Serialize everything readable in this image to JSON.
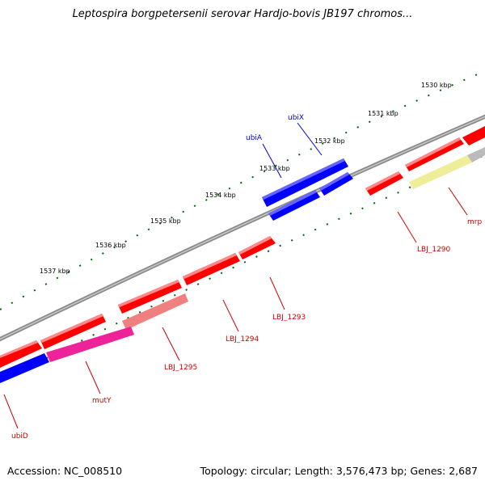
{
  "title": "Leptospira borgpetersenii serovar Hardjo-bovis JB197 chromos...",
  "footer": {
    "accession": "Accession: NC_008510",
    "summary": "Topology: circular; Length: 3,576,473 bp; Genes: 2,687"
  },
  "colors": {
    "gene_red": "#ff0000",
    "gene_blue": "#0000ff",
    "gene_pink": "#ee2299",
    "gene_salmon": "#f08080",
    "gene_yellow": "#eeee99",
    "gene_grey": "#bbbbbb",
    "tick_green": "#006600",
    "backbone": "#888888",
    "label_red": "#cc0000",
    "label_blue": "#0000cc"
  },
  "kbp_labels": [
    "1530 kbp",
    "1531 kbp",
    "1532 kbp",
    "1533 kbp",
    "1534 kbp",
    "1535 kbp",
    "1536 kbp",
    "1537 kbp"
  ],
  "gene_labels": [
    "ubiX",
    "ubiA",
    "LBJ_1290",
    "mrp",
    "LBJ_1293",
    "LBJ_1294",
    "LBJ_1295",
    "mutY",
    "ubiD"
  ]
}
